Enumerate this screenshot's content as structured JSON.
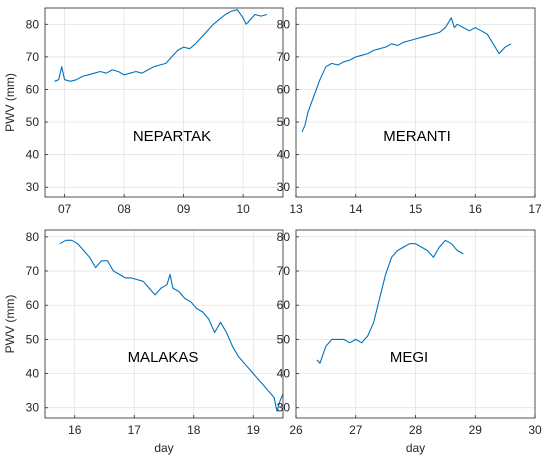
{
  "figure": {
    "line_color": "#0072BD",
    "grid": true
  },
  "chart_data": [
    {
      "type": "line",
      "annotation": "NEPARTAK",
      "xlim": [
        6.67,
        10.67
      ],
      "ylim": [
        27,
        85
      ],
      "xticks": [
        7,
        8,
        9,
        10
      ],
      "xtick_labels": [
        "07",
        "08",
        "09",
        "10"
      ],
      "yticks": [
        30,
        40,
        50,
        60,
        70,
        80
      ],
      "xlabel": "",
      "ylabel": "PWV (mm)",
      "series": [
        {
          "x": [
            6.83,
            6.9,
            6.95,
            7.0,
            7.1,
            7.2,
            7.3,
            7.4,
            7.5,
            7.6,
            7.7,
            7.8,
            7.9,
            8.0,
            8.1,
            8.2,
            8.3,
            8.4,
            8.5,
            8.6,
            8.7,
            8.8,
            8.9,
            9.0,
            9.1,
            9.2,
            9.3,
            9.4,
            9.5,
            9.6,
            9.7,
            9.8,
            9.9,
            10.0,
            10.05,
            10.1,
            10.2,
            10.3,
            10.4
          ],
          "y": [
            62.5,
            63,
            67,
            63,
            62.5,
            63,
            64,
            64.5,
            65,
            65.5,
            65,
            66,
            65.5,
            64.5,
            65,
            65.5,
            65,
            66,
            67,
            67.5,
            68,
            70,
            72,
            73,
            72.5,
            74,
            76,
            78,
            80,
            81.5,
            83,
            84,
            84.5,
            82,
            80,
            81,
            83,
            82.5,
            83
          ]
        }
      ]
    },
    {
      "type": "line",
      "annotation": "MERANTI",
      "xlim": [
        13,
        17
      ],
      "ylim": [
        27,
        85
      ],
      "xticks": [
        13,
        14,
        15,
        16,
        17
      ],
      "xtick_labels": [
        "13",
        "14",
        "15",
        "16",
        "17"
      ],
      "yticks": [
        30,
        40,
        50,
        60,
        70,
        80
      ],
      "xlabel": "",
      "ylabel": "",
      "series": [
        {
          "x": [
            13.1,
            13.15,
            13.2,
            13.3,
            13.4,
            13.5,
            13.6,
            13.7,
            13.8,
            13.9,
            14.0,
            14.1,
            14.2,
            14.3,
            14.4,
            14.5,
            14.6,
            14.7,
            14.8,
            14.9,
            15.0,
            15.1,
            15.2,
            15.3,
            15.4,
            15.5,
            15.6,
            15.65,
            15.7,
            15.8,
            15.9,
            16.0,
            16.1,
            16.2,
            16.3,
            16.4,
            16.5,
            16.6
          ],
          "y": [
            47,
            49,
            53,
            58,
            63,
            67,
            68,
            67.5,
            68.5,
            69,
            70,
            70.5,
            71,
            72,
            72.5,
            73,
            74,
            73.5,
            74.5,
            75,
            75.5,
            76,
            76.5,
            77,
            77.5,
            79,
            82,
            79,
            80,
            79,
            78,
            79,
            78,
            77,
            74,
            71,
            73,
            74
          ]
        }
      ]
    },
    {
      "type": "line",
      "annotation": "MALAKAS",
      "xlim": [
        15.5,
        19.5
      ],
      "ylim": [
        27,
        82
      ],
      "xticks": [
        16,
        17,
        18,
        19
      ],
      "xtick_labels": [
        "16",
        "17",
        "18",
        "19"
      ],
      "yticks": [
        30,
        40,
        50,
        60,
        70,
        80
      ],
      "xlabel": "day",
      "ylabel": "PWV (mm)",
      "series": [
        {
          "x": [
            15.75,
            15.85,
            15.95,
            16.05,
            16.15,
            16.25,
            16.35,
            16.45,
            16.55,
            16.65,
            16.75,
            16.85,
            16.95,
            17.05,
            17.15,
            17.25,
            17.35,
            17.45,
            17.55,
            17.6,
            17.65,
            17.75,
            17.85,
            17.95,
            18.05,
            18.15,
            18.25,
            18.3,
            18.35,
            18.45,
            18.55,
            18.65,
            18.75,
            18.85,
            18.95,
            19.05,
            19.15,
            19.25,
            19.35,
            19.4,
            19.45,
            19.5
          ],
          "y": [
            78,
            79,
            79,
            78,
            76,
            74,
            71,
            73,
            73,
            70,
            69,
            68,
            68,
            67.5,
            67,
            65,
            63,
            65,
            66,
            69,
            65,
            64,
            62,
            61,
            59,
            58,
            56,
            54,
            52,
            55,
            52,
            48,
            45,
            43,
            41,
            39,
            37,
            35,
            33,
            29,
            32,
            34
          ]
        }
      ]
    },
    {
      "type": "line",
      "annotation": "MEGI",
      "xlim": [
        26,
        30
      ],
      "ylim": [
        27,
        82
      ],
      "xticks": [
        26,
        27,
        28,
        29,
        30
      ],
      "xtick_labels": [
        "26",
        "27",
        "28",
        "29",
        "30"
      ],
      "yticks": [
        30,
        40,
        50,
        60,
        70,
        80
      ],
      "xlabel": "day",
      "ylabel": "",
      "series": [
        {
          "x": [
            26.35,
            26.4,
            26.5,
            26.6,
            26.7,
            26.8,
            26.9,
            27.0,
            27.1,
            27.2,
            27.3,
            27.4,
            27.5,
            27.6,
            27.7,
            27.8,
            27.9,
            28.0,
            28.1,
            28.2,
            28.3,
            28.4,
            28.5,
            28.6,
            28.7,
            28.8
          ],
          "y": [
            44,
            43,
            48,
            50,
            50,
            50,
            49,
            50,
            49,
            51,
            55,
            62,
            69,
            74,
            76,
            77,
            78,
            78,
            77,
            76,
            74,
            77,
            79,
            78,
            76,
            75
          ]
        }
      ]
    }
  ]
}
